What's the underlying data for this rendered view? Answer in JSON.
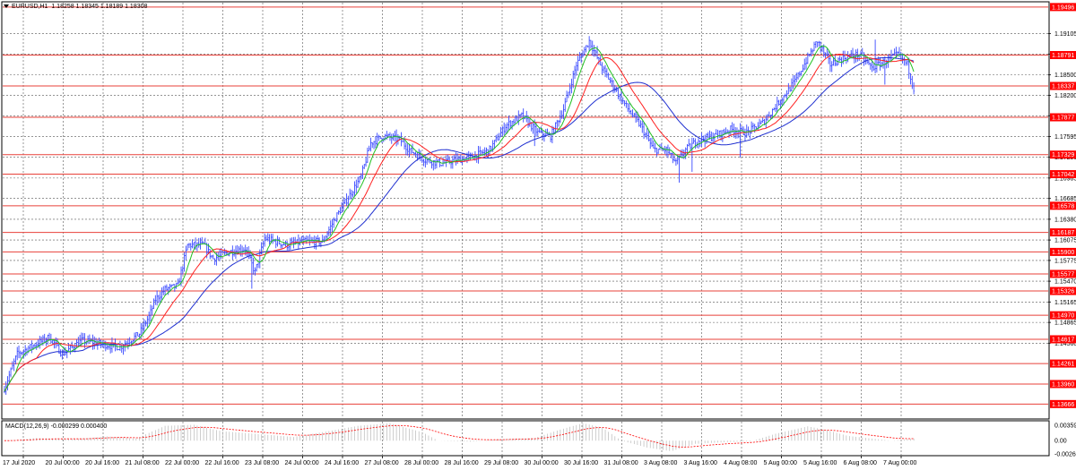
{
  "price_panel": {
    "symbol_label": "EURUSD,H1",
    "ohlc": "1.18258 1.18345 1.18189 1.18308",
    "price_ticks": [
      "1.19105",
      "1.18805",
      "1.18500",
      "1.18200",
      "1.17900",
      "1.17595",
      "1.17290",
      "1.16985",
      "1.16685",
      "1.16380",
      "1.16075",
      "1.15775",
      "1.15470",
      "1.15165",
      "1.14865",
      "1.14560"
    ],
    "levels": [
      {
        "label": "1.19496"
      },
      {
        "label": "1.18791"
      },
      {
        "label": "1.18337"
      },
      {
        "label": "1.17877"
      },
      {
        "label": "1.17329"
      },
      {
        "label": "1.17042"
      },
      {
        "label": "1.16578"
      },
      {
        "label": "1.16187"
      },
      {
        "label": "1.15900"
      },
      {
        "label": "1.15577"
      },
      {
        "label": "1.15326"
      },
      {
        "label": "1.14970"
      },
      {
        "label": "1.14617"
      },
      {
        "label": "1.14261"
      },
      {
        "label": "1.13960"
      },
      {
        "label": "1.13666"
      }
    ]
  },
  "macd_panel": {
    "label": "MACD(12,26,9) -0.000299 0.000400",
    "ticks": [
      "0.00359",
      "0.00",
      "-0.00267"
    ]
  },
  "time_axis": [
    "17 Jul 2020",
    "20 Jul 00:00",
    "20 Jul 16:00",
    "21 Jul 08:00",
    "22 Jul 00:00",
    "22 Jul 16:00",
    "23 Jul 08:00",
    "24 Jul 00:00",
    "24 Jul 16:00",
    "27 Jul 08:00",
    "28 Jul 00:00",
    "28 Jul 16:00",
    "29 Jul 08:00",
    "30 Jul 00:00",
    "30 Jul 16:00",
    "31 Jul 08:00",
    "3 Aug 08:00",
    "3 Aug 16:00",
    "4 Aug 08:00",
    "5 Aug 00:00",
    "5 Aug 16:00",
    "6 Aug 08:00",
    "7 Aug 00:00"
  ],
  "colors": {
    "background": "#ffffff",
    "level_line": "#e8413a",
    "level_tag": "#ff0000",
    "price_tag": "#ff0000",
    "candles": "#3a4aff",
    "ma_fast": "#22c022",
    "ma_mid": "#ff2020",
    "ma_slow": "#2030d0",
    "macd_hist": "#b8b8b8",
    "macd_signal": "#ff0000",
    "grid": "#555555"
  },
  "chart_data": {
    "type": "line",
    "y_range": [
      1.1346,
      1.1956
    ],
    "close_waypoints": [
      [
        0,
        1.139
      ],
      [
        8,
        1.144
      ],
      [
        20,
        1.1455
      ],
      [
        28,
        1.1465
      ],
      [
        36,
        1.144
      ],
      [
        48,
        1.146
      ],
      [
        60,
        1.1455
      ],
      [
        72,
        1.145
      ],
      [
        84,
        1.147
      ],
      [
        90,
        1.1495
      ],
      [
        94,
        1.152
      ],
      [
        100,
        1.1535
      ],
      [
        108,
        1.154
      ],
      [
        114,
        1.16
      ],
      [
        124,
        1.16
      ],
      [
        130,
        1.158
      ],
      [
        140,
        1.159
      ],
      [
        150,
        1.1595
      ],
      [
        156,
        1.156
      ],
      [
        162,
        1.161
      ],
      [
        176,
        1.16
      ],
      [
        186,
        1.1605
      ],
      [
        198,
        1.1605
      ],
      [
        206,
        1.164
      ],
      [
        214,
        1.167
      ],
      [
        222,
        1.17
      ],
      [
        228,
        1.175
      ],
      [
        236,
        1.176
      ],
      [
        246,
        1.1755
      ],
      [
        252,
        1.174
      ],
      [
        262,
        1.1725
      ],
      [
        272,
        1.172
      ],
      [
        282,
        1.1725
      ],
      [
        292,
        1.173
      ],
      [
        302,
        1.174
      ],
      [
        312,
        1.1775
      ],
      [
        322,
        1.179
      ],
      [
        332,
        1.1765
      ],
      [
        340,
        1.176
      ],
      [
        348,
        1.18
      ],
      [
        356,
        1.1865
      ],
      [
        364,
        1.19
      ],
      [
        372,
        1.186
      ],
      [
        380,
        1.183
      ],
      [
        388,
        1.18
      ],
      [
        396,
        1.1775
      ],
      [
        404,
        1.174
      ],
      [
        412,
        1.174
      ],
      [
        418,
        1.172
      ],
      [
        424,
        1.174
      ],
      [
        432,
        1.1755
      ],
      [
        442,
        1.176
      ],
      [
        452,
        1.177
      ],
      [
        462,
        1.1765
      ],
      [
        472,
        1.178
      ],
      [
        482,
        1.181
      ],
      [
        492,
        1.184
      ],
      [
        500,
        1.1875
      ],
      [
        506,
        1.19
      ],
      [
        514,
        1.1865
      ],
      [
        522,
        1.1875
      ],
      [
        532,
        1.188
      ],
      [
        540,
        1.186
      ],
      [
        548,
        1.187
      ],
      [
        556,
        1.188
      ],
      [
        562,
        1.1865
      ],
      [
        566,
        1.183
      ]
    ],
    "macd_waypoints": [
      [
        0,
        0.0
      ],
      [
        20,
        0.0005
      ],
      [
        45,
        0.0003
      ],
      [
        64,
        0.0008
      ],
      [
        82,
        0.0004
      ],
      [
        100,
        0.0028
      ],
      [
        118,
        0.003
      ],
      [
        135,
        0.0018
      ],
      [
        160,
        0.0012
      ],
      [
        180,
        0.0007
      ],
      [
        200,
        0.0017
      ],
      [
        220,
        0.0028
      ],
      [
        240,
        0.0033
      ],
      [
        260,
        0.0016
      ],
      [
        270,
        0.0
      ],
      [
        290,
        -0.0002
      ],
      [
        310,
        0.0003
      ],
      [
        330,
        0.0005
      ],
      [
        345,
        0.002
      ],
      [
        360,
        0.0033
      ],
      [
        372,
        0.0025
      ],
      [
        384,
        0.0
      ],
      [
        400,
        -0.0013
      ],
      [
        415,
        -0.002
      ],
      [
        430,
        -0.0006
      ],
      [
        448,
        -0.0003
      ],
      [
        465,
        -0.0001
      ],
      [
        480,
        0.0013
      ],
      [
        500,
        0.0027
      ],
      [
        512,
        0.002
      ],
      [
        525,
        0.0009
      ],
      [
        540,
        0.0004
      ],
      [
        552,
        0.0
      ],
      [
        566,
        0.0004
      ]
    ]
  }
}
